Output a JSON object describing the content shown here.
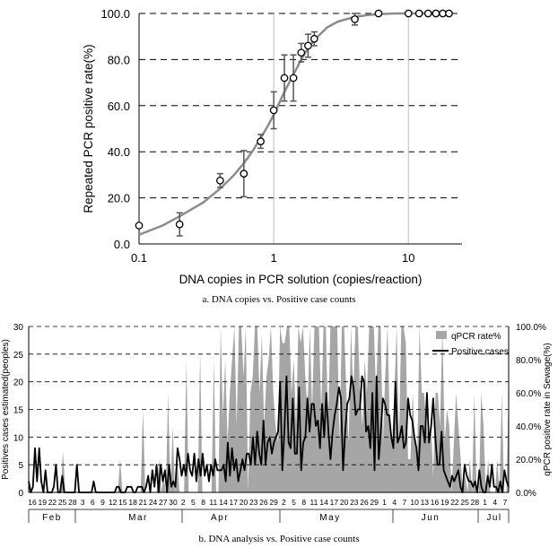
{
  "colors": {
    "curve": "#8c8c8c",
    "marker_edge": "#000000",
    "area": "#a6a6a6",
    "line": "#000000",
    "grid": "#000000",
    "vline": "#bfbfbf"
  },
  "chart_data": [
    {
      "type": "scatter",
      "xscale": "log",
      "xlabel": "DNA copies in PCR solution (copies/reaction)",
      "ylabel": "Repeated PCR positive rate(%)",
      "xlim": [
        0.1,
        25
      ],
      "ylim": [
        0,
        100
      ],
      "xticks": [
        "0.1",
        "1",
        "10"
      ],
      "yticks": [
        "0.0",
        "20.0",
        "40.0",
        "60.0",
        "80.0",
        "100.0"
      ],
      "grid": "horizontal dashed",
      "caption": "a.  DNA  copies  vs.  Positive  case  counts",
      "points": [
        {
          "x": 0.1,
          "y": 8,
          "err": 0
        },
        {
          "x": 0.2,
          "y": 8.5,
          "err": 5
        },
        {
          "x": 0.4,
          "y": 27.5,
          "err": 3
        },
        {
          "x": 0.6,
          "y": 30.5,
          "err": 10
        },
        {
          "x": 0.8,
          "y": 44.5,
          "err": 3
        },
        {
          "x": 1.0,
          "y": 58,
          "err": 8
        },
        {
          "x": 1.2,
          "y": 72,
          "err": 10
        },
        {
          "x": 1.4,
          "y": 72,
          "err": 10
        },
        {
          "x": 1.6,
          "y": 83,
          "err": 4
        },
        {
          "x": 1.8,
          "y": 86,
          "err": 5
        },
        {
          "x": 2.0,
          "y": 89,
          "err": 3
        },
        {
          "x": 4.0,
          "y": 97.5,
          "err": 2.5
        },
        {
          "x": 6,
          "y": 100,
          "err": 0
        },
        {
          "x": 10,
          "y": 100,
          "err": 0
        },
        {
          "x": 12,
          "y": 100,
          "err": 0
        },
        {
          "x": 14,
          "y": 100,
          "err": 0
        },
        {
          "x": 16,
          "y": 100,
          "err": 0
        },
        {
          "x": 18,
          "y": 100,
          "err": 0
        },
        {
          "x": 20,
          "y": 100,
          "err": 0
        }
      ],
      "fit_curve": {
        "x": [
          0.1,
          0.15,
          0.2,
          0.3,
          0.4,
          0.5,
          0.6,
          0.7,
          0.8,
          0.9,
          1.0,
          1.2,
          1.4,
          1.6,
          1.8,
          2.0,
          2.5,
          3,
          4,
          5,
          6,
          8,
          10,
          15,
          20
        ],
        "y": [
          4,
          8,
          12,
          18,
          24,
          29.5,
          35,
          40.5,
          46,
          51,
          56,
          66,
          73.5,
          80,
          85,
          88.5,
          94,
          96.5,
          98.5,
          99.3,
          99.7,
          100,
          100,
          100,
          100
        ]
      }
    },
    {
      "type": "area+line",
      "caption": "b.  DNA  analysis  vs.  Positive  case  counts",
      "ylabel_left": "Positives cases estimated(peoples)",
      "ylabel_right": "qPCR positive rate in Sewage(%)",
      "ylim_left": [
        0,
        30
      ],
      "ylim_right": [
        0,
        100
      ],
      "yticks_left": [
        "0",
        "5",
        "10",
        "15",
        "20",
        "25",
        "30"
      ],
      "yticks_right": [
        "0.0%",
        "20.0%",
        "40.0%",
        "60.0%",
        "80.0%",
        "100.0%"
      ],
      "grid": "horizontal dashed",
      "legend_position": "top-right",
      "x_tick_labels": [
        "16",
        "19",
        "22",
        "25",
        "28",
        "3",
        "6",
        "9",
        "12",
        "15",
        "18",
        "21",
        "24",
        "27",
        "30",
        "2",
        "5",
        "8",
        "11",
        "14",
        "17",
        "20",
        "23",
        "26",
        "29",
        "2",
        "5",
        "8",
        "11",
        "14",
        "17",
        "20",
        "23",
        "26",
        "29",
        "1",
        "4",
        "7",
        "10",
        "13",
        "16",
        "19",
        "22",
        "25",
        "28",
        "1",
        "4",
        "7"
      ],
      "months": [
        "Feb",
        "Mar",
        "Apr",
        "May",
        "Jun",
        "Jul"
      ],
      "series": [
        {
          "name": "qPCR rate%",
          "axis": "right",
          "values": [
            0,
            0,
            0,
            0,
            0,
            0,
            0,
            0,
            0,
            0,
            0,
            0,
            0,
            0,
            0,
            25,
            0,
            0,
            0,
            0,
            0,
            0,
            0,
            0,
            0,
            0,
            0,
            0,
            0,
            0,
            0,
            0,
            0,
            0,
            0,
            0,
            0,
            0,
            0,
            0,
            20,
            0,
            0,
            0,
            0,
            0,
            0,
            0,
            0,
            0,
            50,
            0,
            0,
            0,
            0,
            0,
            0,
            20,
            0,
            10,
            0,
            60,
            0,
            40,
            0,
            20,
            0,
            0,
            0,
            80,
            0,
            0,
            0,
            0,
            0,
            85,
            0,
            0,
            0,
            0,
            0,
            80,
            0,
            0,
            100,
            45,
            80,
            30,
            60,
            80,
            100,
            40,
            100,
            100,
            70,
            100,
            0,
            60,
            70,
            100,
            100,
            60,
            95,
            40,
            70,
            80,
            100,
            60,
            40,
            30,
            100,
            90,
            90,
            100,
            100,
            60,
            80,
            40,
            100,
            90,
            100,
            70,
            50,
            100,
            50,
            100,
            100,
            100,
            50,
            100,
            100,
            40,
            100,
            100,
            100,
            100,
            30,
            100,
            100,
            60,
            30,
            100,
            60,
            100,
            100,
            60,
            40,
            80,
            60,
            100,
            100,
            100,
            60,
            100,
            100,
            30,
            70,
            100,
            40,
            30,
            60,
            100,
            30,
            100,
            100,
            90,
            20,
            20,
            60,
            30,
            20,
            100,
            60,
            60,
            40,
            30,
            40,
            10,
            60,
            60,
            40,
            100,
            30,
            50,
            40,
            0,
            30,
            60,
            40,
            20,
            0,
            10,
            0,
            20,
            0,
            60,
            0,
            0,
            60,
            40,
            0,
            20,
            0,
            0,
            0,
            20,
            0,
            60,
            0,
            0,
            60
          ]
        },
        {
          "name": "Positive cases",
          "axis": "left",
          "values": [
            2,
            0,
            1,
            8,
            2,
            8,
            2,
            0,
            4,
            0,
            0,
            0,
            1,
            5,
            0,
            0,
            3,
            0,
            0,
            0,
            0,
            0,
            0,
            5,
            0,
            0,
            0,
            0,
            0,
            0,
            0,
            2,
            0,
            0,
            0,
            0,
            0,
            0,
            0,
            0,
            0,
            0,
            1,
            1,
            0,
            0,
            0,
            1,
            1,
            1,
            0,
            0,
            1,
            1,
            1,
            0,
            1,
            3,
            0,
            4,
            1,
            5,
            0,
            5,
            2,
            4,
            0,
            5,
            1,
            2,
            1,
            8,
            6,
            3,
            5,
            3,
            7,
            4,
            3,
            7,
            2,
            6,
            3,
            7,
            3,
            5,
            2,
            5,
            3,
            6,
            4,
            4,
            4,
            5,
            2,
            9,
            3,
            8,
            4,
            6,
            2,
            4,
            6,
            4,
            7,
            7,
            5,
            10,
            5,
            11,
            7,
            5,
            13,
            5,
            9,
            10,
            7,
            9,
            10,
            11,
            20,
            4,
            11,
            21,
            9,
            8,
            17,
            7,
            7,
            19,
            4,
            9,
            10,
            17,
            11,
            16,
            16,
            12,
            13,
            8,
            16,
            10,
            18,
            11,
            6,
            11,
            14,
            16,
            19,
            17,
            4,
            11,
            16,
            17,
            21,
            19,
            14,
            15,
            15,
            21,
            20,
            11,
            12,
            8,
            18,
            4,
            21,
            6,
            11,
            17,
            16,
            14,
            14,
            10,
            8,
            20,
            9,
            10,
            12,
            8,
            9,
            17,
            14,
            13,
            10,
            8,
            4,
            12,
            12,
            9,
            18,
            9,
            12,
            17,
            10,
            5,
            5,
            11,
            4,
            3,
            2,
            1,
            3,
            2,
            3,
            4,
            1,
            0,
            5,
            3,
            2,
            2,
            1,
            2,
            0,
            4,
            1,
            0,
            0,
            3,
            1,
            5,
            1,
            1,
            0,
            2,
            0,
            4,
            2,
            1
          ]
        }
      ]
    }
  ]
}
